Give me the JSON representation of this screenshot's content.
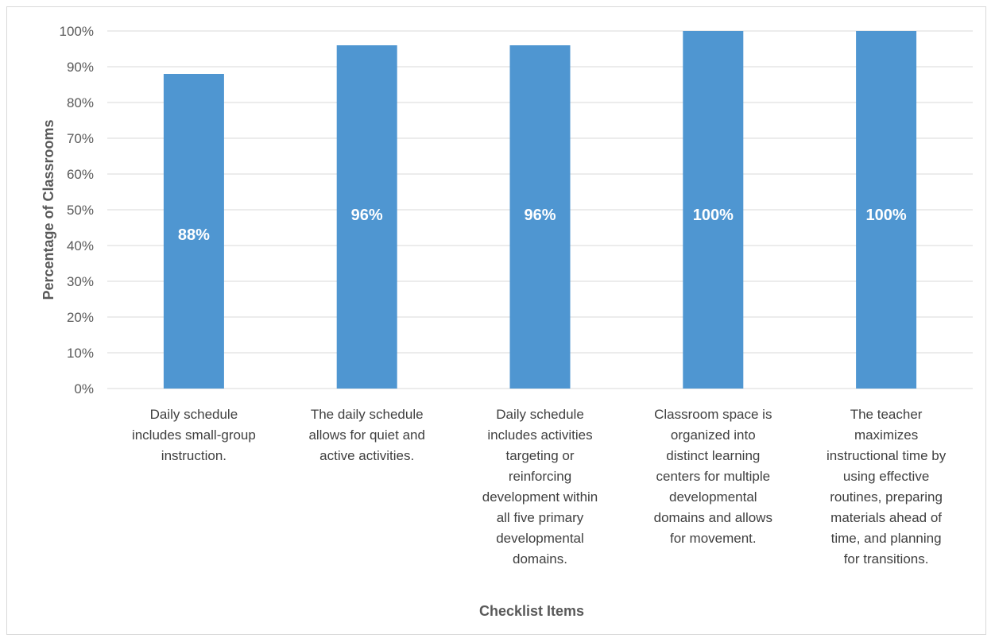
{
  "chart_data": {
    "type": "bar",
    "categories": [
      "Daily schedule includes small-group instruction.",
      "The daily schedule allows for quiet and active activities.",
      "Daily schedule includes activities targeting or reinforcing development within all five primary developmental domains.",
      "Classroom space is organized into distinct learning centers for multiple developmental domains and allows for movement.",
      "The teacher maximizes instructional time by using effective routines, preparing materials ahead of time, and planning for transitions."
    ],
    "category_lines": [
      [
        "Daily schedule",
        "includes small-group",
        "instruction."
      ],
      [
        "The daily schedule",
        "allows for quiet and",
        "active activities."
      ],
      [
        "Daily schedule",
        "includes activities",
        "targeting or",
        "reinforcing",
        "development within",
        "all five primary",
        "developmental",
        "domains."
      ],
      [
        "Classroom space is",
        "organized into",
        "distinct learning",
        "centers for multiple",
        "developmental",
        "domains and allows",
        "for movement."
      ],
      [
        "The teacher",
        "maximizes",
        "instructional time by",
        "using effective",
        "routines, preparing",
        "materials ahead of",
        "time, and planning",
        "for transitions."
      ]
    ],
    "values": [
      88,
      96,
      96,
      100,
      100
    ],
    "data_labels": [
      "88%",
      "96%",
      "96%",
      "100%",
      "100%"
    ],
    "xlabel": "Checklist Items",
    "ylabel": "Percentage of Classrooms",
    "ylim": [
      0,
      100
    ],
    "yticks": [
      0,
      10,
      20,
      30,
      40,
      50,
      60,
      70,
      80,
      90,
      100
    ],
    "ytick_labels": [
      "0%",
      "10%",
      "20%",
      "30%",
      "40%",
      "50%",
      "60%",
      "70%",
      "80%",
      "90%",
      "100%"
    ],
    "grid": true,
    "legend": "none",
    "bar_color": "#4f96d1",
    "grid_color": "#d9d9d9"
  }
}
